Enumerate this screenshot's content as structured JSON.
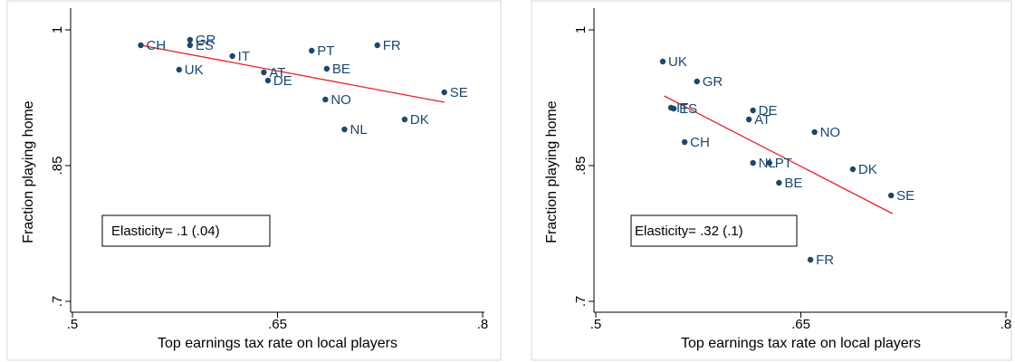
{
  "chart_data": [
    {
      "type": "scatter",
      "xlabel": "Top earnings tax rate on local players",
      "ylabel": "Fraction playing home",
      "annotation": "Elasticity=  .1 (.04)",
      "color": "#1a476f",
      "grid": false,
      "xlim": [
        0.5,
        0.8
      ],
      "ylim": [
        0.69,
        1.02
      ],
      "xticks": [
        {
          "value": 0.5,
          "label": ".5"
        },
        {
          "value": 0.65,
          "label": ".65"
        },
        {
          "value": 0.8,
          "label": ".8"
        }
      ],
      "yticks": [
        {
          "value": 0.7,
          "label": ".7"
        },
        {
          "value": 0.85,
          "label": ".85"
        },
        1
      ],
      "point_labels": [
        "CH",
        "GR",
        "ES",
        "IT",
        "PT",
        "FR",
        "UK",
        "AT",
        "BE",
        "DE",
        "NO",
        "SE",
        "DK",
        "NL"
      ],
      "x": [
        0.55,
        0.586,
        0.586,
        0.617,
        0.675,
        0.723,
        0.578,
        0.64,
        0.686,
        0.643,
        0.685,
        0.772,
        0.743,
        0.699
      ],
      "values": [
        0.983,
        0.989,
        0.983,
        0.971,
        0.977,
        0.983,
        0.956,
        0.953,
        0.957,
        0.944,
        0.923,
        0.931,
        0.901,
        0.89
      ],
      "fit_line": {
        "color": "#e8202a",
        "x": [
          0.55,
          0.772
        ],
        "values": [
          0.983,
          0.92
        ]
      }
    },
    {
      "type": "scatter",
      "xlabel": "Top earnings tax rate on local players",
      "ylabel": "Fraction playing home",
      "annotation": "Elasticity=  .32 (.1)",
      "color": "#1a476f",
      "grid": false,
      "xlim": [
        0.5,
        0.8
      ],
      "ylim": [
        0.69,
        1.02
      ],
      "xticks": [
        {
          "value": 0.5,
          "label": ".5"
        },
        {
          "value": 0.65,
          "label": ".65"
        },
        {
          "value": 0.8,
          "label": ".8"
        }
      ],
      "yticks": [
        {
          "value": 0.7,
          "label": ".7"
        },
        {
          "value": 0.85,
          "label": ".85"
        },
        1
      ],
      "point_labels": [
        "UK",
        "GR",
        "IT",
        "ES",
        "DE",
        "AT",
        "NO",
        "CH",
        "NL",
        "PT",
        "DK",
        "BE",
        "SE",
        "FR"
      ],
      "x": [
        0.549,
        0.574,
        0.555,
        0.557,
        0.615,
        0.612,
        0.66,
        0.565,
        0.615,
        0.627,
        0.688,
        0.634,
        0.716,
        0.657
      ],
      "values": [
        0.965,
        0.943,
        0.914,
        0.913,
        0.911,
        0.901,
        0.887,
        0.876,
        0.853,
        0.853,
        0.846,
        0.831,
        0.817,
        0.746
      ],
      "fit_line": {
        "color": "#e8202a",
        "x": [
          0.55,
          0.717
        ],
        "values": [
          0.927,
          0.797
        ]
      }
    }
  ]
}
